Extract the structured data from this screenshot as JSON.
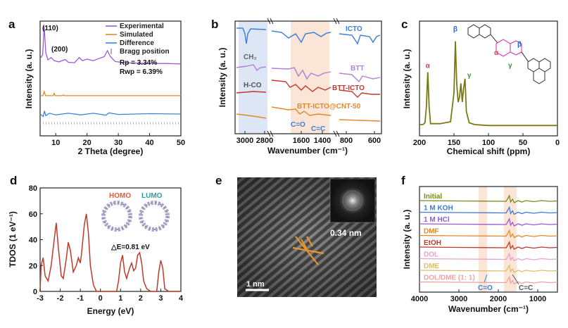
{
  "chart_data": [
    {
      "panel": "a",
      "type": "line",
      "xlabel": "2 Theta (degree)",
      "ylabel": "Intensity (a. u.)",
      "xlim": [
        5,
        50
      ],
      "xticks": [
        10,
        20,
        30,
        40,
        50
      ],
      "peak_labels": [
        "(110)",
        "(200)"
      ],
      "legend": [
        {
          "name": "Experimental",
          "color": "#9b59d6"
        },
        {
          "name": "Simulated",
          "color": "#e08a2c"
        },
        {
          "name": "Difference",
          "color": "#3b86d9"
        },
        {
          "name": "Bragg position",
          "color": "#666666"
        }
      ],
      "stats": [
        "Rp = 3.34%",
        "Rwp = 6.39%"
      ],
      "series": [
        {
          "name": "Experimental",
          "color": "#9b59d6",
          "offset": 0.62,
          "points": [
            [
              5,
              0.15
            ],
            [
              5.8,
              0.25
            ],
            [
              6.3,
              0.95
            ],
            [
              6.8,
              0.3
            ],
            [
              7.5,
              0.12
            ],
            [
              8.5,
              0.18
            ],
            [
              9.5,
              0.1
            ],
            [
              11,
              0.07
            ],
            [
              13,
              0.13
            ],
            [
              14,
              0.06
            ],
            [
              16,
              0.05
            ],
            [
              17.5,
              0.18
            ],
            [
              18.5,
              0.1
            ],
            [
              20,
              0.14
            ],
            [
              22,
              0.1
            ],
            [
              24,
              0.16
            ],
            [
              25.5,
              0.2
            ],
            [
              26.5,
              0.35
            ],
            [
              27.5,
              0.2
            ],
            [
              29,
              0.08
            ],
            [
              32,
              0.05
            ],
            [
              36,
              0.04
            ],
            [
              40,
              0.03
            ],
            [
              45,
              0.03
            ],
            [
              50,
              0.02
            ]
          ]
        },
        {
          "name": "Simulated",
          "color": "#e08a2c",
          "offset": 0.35,
          "points": [
            [
              5,
              0
            ],
            [
              5.9,
              0
            ],
            [
              6.3,
              0.1
            ],
            [
              6.7,
              0
            ],
            [
              9.2,
              0
            ],
            [
              9.5,
              0.06
            ],
            [
              9.8,
              0
            ],
            [
              12,
              0
            ],
            [
              12.4,
              0.02
            ],
            [
              12.8,
              0
            ],
            [
              50,
              0
            ]
          ]
        },
        {
          "name": "Difference",
          "color": "#3b86d9",
          "offset": 0.19,
          "points": [
            [
              5,
              0
            ],
            [
              6,
              -0.06
            ],
            [
              6.4,
              0.08
            ],
            [
              6.8,
              -0.04
            ],
            [
              8,
              0.02
            ],
            [
              10,
              -0.02
            ],
            [
              14,
              0.02
            ],
            [
              18,
              -0.02
            ],
            [
              22,
              0.02
            ],
            [
              26,
              -0.03
            ],
            [
              27,
              0.03
            ],
            [
              30,
              -0.01
            ],
            [
              40,
              0.01
            ],
            [
              50,
              0
            ]
          ]
        }
      ]
    },
    {
      "panel": "b",
      "type": "line",
      "xlabel": "Wavenumber (cm⁻¹)",
      "ylabel": "Intensity (a. u.)",
      "xticks": [
        3000,
        2800,
        1600,
        1400,
        800,
        600
      ],
      "series": [
        {
          "name": "ICTO",
          "color": "#3b7dd8"
        },
        {
          "name": "BTT",
          "color": "#b07fd9"
        },
        {
          "name": "BTT-ICTO",
          "color": "#c0392b"
        },
        {
          "name": "BTT-ICTO@CNT-50",
          "color": "#e08a2c"
        }
      ],
      "annotations": [
        "CH₂",
        "H-CO",
        "C=O",
        "C=C"
      ]
    },
    {
      "panel": "c",
      "type": "line",
      "xlabel": "Chemical shift (ppm)",
      "ylabel": "Intensity (a. u.)",
      "xlim": [
        200,
        0
      ],
      "xticks": [
        200,
        150,
        100,
        50,
        0
      ],
      "color": "#7a7a12",
      "peaks": [
        {
          "label": "α",
          "ppm": 188,
          "color": "#d64545"
        },
        {
          "label": "β",
          "ppm": 148,
          "color": "#1f6fd1"
        },
        {
          "label": "γ",
          "ppm": 134,
          "color": "#2d9a3a"
        }
      ],
      "points": [
        [
          200,
          0.06
        ],
        [
          195,
          0.06
        ],
        [
          192,
          0.08
        ],
        [
          190,
          0.25
        ],
        [
          188,
          0.62
        ],
        [
          186,
          0.25
        ],
        [
          184,
          0.07
        ],
        [
          170,
          0.07
        ],
        [
          155,
          0.09
        ],
        [
          150,
          0.4
        ],
        [
          148,
          0.95
        ],
        [
          146,
          0.5
        ],
        [
          144,
          0.3
        ],
        [
          142,
          0.35
        ],
        [
          140,
          0.5
        ],
        [
          138,
          0.3
        ],
        [
          136,
          0.45
        ],
        [
          134,
          0.55
        ],
        [
          132,
          0.2
        ],
        [
          128,
          0.08
        ],
        [
          120,
          0.06
        ],
        [
          100,
          0.05
        ],
        [
          50,
          0.05
        ],
        [
          0,
          0.05
        ]
      ]
    },
    {
      "panel": "d",
      "type": "line",
      "xlabel": "Energy (eV)",
      "ylabel": "TDOS (1 eV⁻¹)",
      "xlim": [
        -3,
        4
      ],
      "ylim": [
        0,
        80
      ],
      "xticks": [
        -3,
        -2,
        -1,
        0,
        1,
        2,
        3,
        4
      ],
      "yticks": [
        0,
        20,
        40,
        60,
        80
      ],
      "color": "#c0392b",
      "annotations": {
        "homo": "HOMO",
        "lumo": "LUMO",
        "gap": "△E=0.81 eV"
      },
      "points": [
        [
          -3,
          0
        ],
        [
          -2.95,
          20
        ],
        [
          -2.85,
          26
        ],
        [
          -2.75,
          12
        ],
        [
          -2.6,
          8
        ],
        [
          -2.45,
          20
        ],
        [
          -2.3,
          40
        ],
        [
          -2.2,
          53
        ],
        [
          -2.1,
          35
        ],
        [
          -1.95,
          12
        ],
        [
          -1.85,
          10
        ],
        [
          -1.7,
          25
        ],
        [
          -1.6,
          38
        ],
        [
          -1.5,
          32
        ],
        [
          -1.35,
          15
        ],
        [
          -1.2,
          20
        ],
        [
          -1.1,
          26
        ],
        [
          -1.0,
          22
        ],
        [
          -0.95,
          28
        ],
        [
          -0.8,
          52
        ],
        [
          -0.7,
          60
        ],
        [
          -0.6,
          45
        ],
        [
          -0.5,
          20
        ],
        [
          -0.35,
          5
        ],
        [
          -0.2,
          0
        ],
        [
          0.8,
          0
        ],
        [
          0.9,
          8
        ],
        [
          1.0,
          22
        ],
        [
          1.1,
          28
        ],
        [
          1.2,
          15
        ],
        [
          1.3,
          10
        ],
        [
          1.45,
          18
        ],
        [
          1.55,
          22
        ],
        [
          1.65,
          16
        ],
        [
          1.75,
          18
        ],
        [
          1.85,
          28
        ],
        [
          1.95,
          30
        ],
        [
          2.05,
          22
        ],
        [
          2.15,
          8
        ],
        [
          2.3,
          2
        ],
        [
          2.5,
          0
        ],
        [
          2.8,
          0
        ],
        [
          2.9,
          15
        ],
        [
          3.0,
          24
        ],
        [
          3.1,
          18
        ],
        [
          3.2,
          2
        ],
        [
          3.4,
          0
        ],
        [
          4,
          0
        ]
      ]
    },
    {
      "panel": "e",
      "type": "image",
      "labels": {
        "spacing": "0.34 nm",
        "scale": "1 nm"
      }
    },
    {
      "panel": "f",
      "type": "line",
      "xlabel": "Wavenumber (cm⁻¹)",
      "ylabel": "Intensity (a. u.)",
      "xlim": [
        4000,
        500
      ],
      "xticks": [
        4000,
        3000,
        2000,
        1000
      ],
      "series": [
        {
          "name": "Initial",
          "color": "#7a8a1a"
        },
        {
          "name": "1 M KOH",
          "color": "#3b7dd8"
        },
        {
          "name": "1 M HCl",
          "color": "#9b59d6"
        },
        {
          "name": "DMF",
          "color": "#e08a2c"
        },
        {
          "name": "EtOH",
          "color": "#c0392b"
        },
        {
          "name": "DOL",
          "color": "#e6a2d0"
        },
        {
          "name": "DME",
          "color": "#d9c070"
        },
        {
          "name": "DOL/DME (1: 1)",
          "color": "#e8a5a5"
        }
      ],
      "annotations": [
        "C=O",
        "C=C"
      ]
    }
  ],
  "panel_letters": [
    "a",
    "b",
    "c",
    "d",
    "e",
    "f"
  ]
}
